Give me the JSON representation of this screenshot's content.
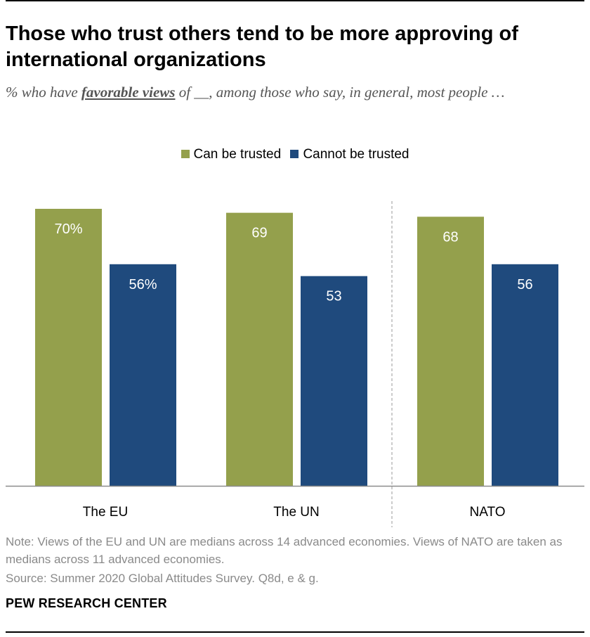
{
  "title": "Those who trust others tend to be more approving of international organizations",
  "subtitle": {
    "prefix": "% who have ",
    "emphasis": "favorable views",
    "suffix": " of __, among those who say, in general, most people …"
  },
  "legend": [
    {
      "label": "Can be trusted",
      "color": "#94a04c"
    },
    {
      "label": "Cannot be trusted",
      "color": "#1f4a7d"
    }
  ],
  "chart_data": {
    "type": "bar",
    "categories": [
      "The EU",
      "The UN",
      "NATO"
    ],
    "series": [
      {
        "name": "Can be trusted",
        "values": [
          70,
          69,
          68
        ],
        "labels": [
          "70%",
          "69",
          "68"
        ],
        "color": "#94a04c"
      },
      {
        "name": "Cannot be trusted",
        "values": [
          56,
          53,
          56
        ],
        "labels": [
          "56%",
          "53",
          "56"
        ],
        "color": "#1f4a7d"
      }
    ],
    "ylim": [
      0,
      70
    ],
    "grid": false,
    "legend_position": "top-center",
    "separator_before_category": "NATO"
  },
  "note": "Note: Views of the EU and UN are medians across 14 advanced economies. Views of NATO are taken as medians across 11 advanced economies.",
  "source": "Source: Summer 2020 Global Attitudes Survey. Q8d, e & g.",
  "brand": "PEW RESEARCH CENTER"
}
